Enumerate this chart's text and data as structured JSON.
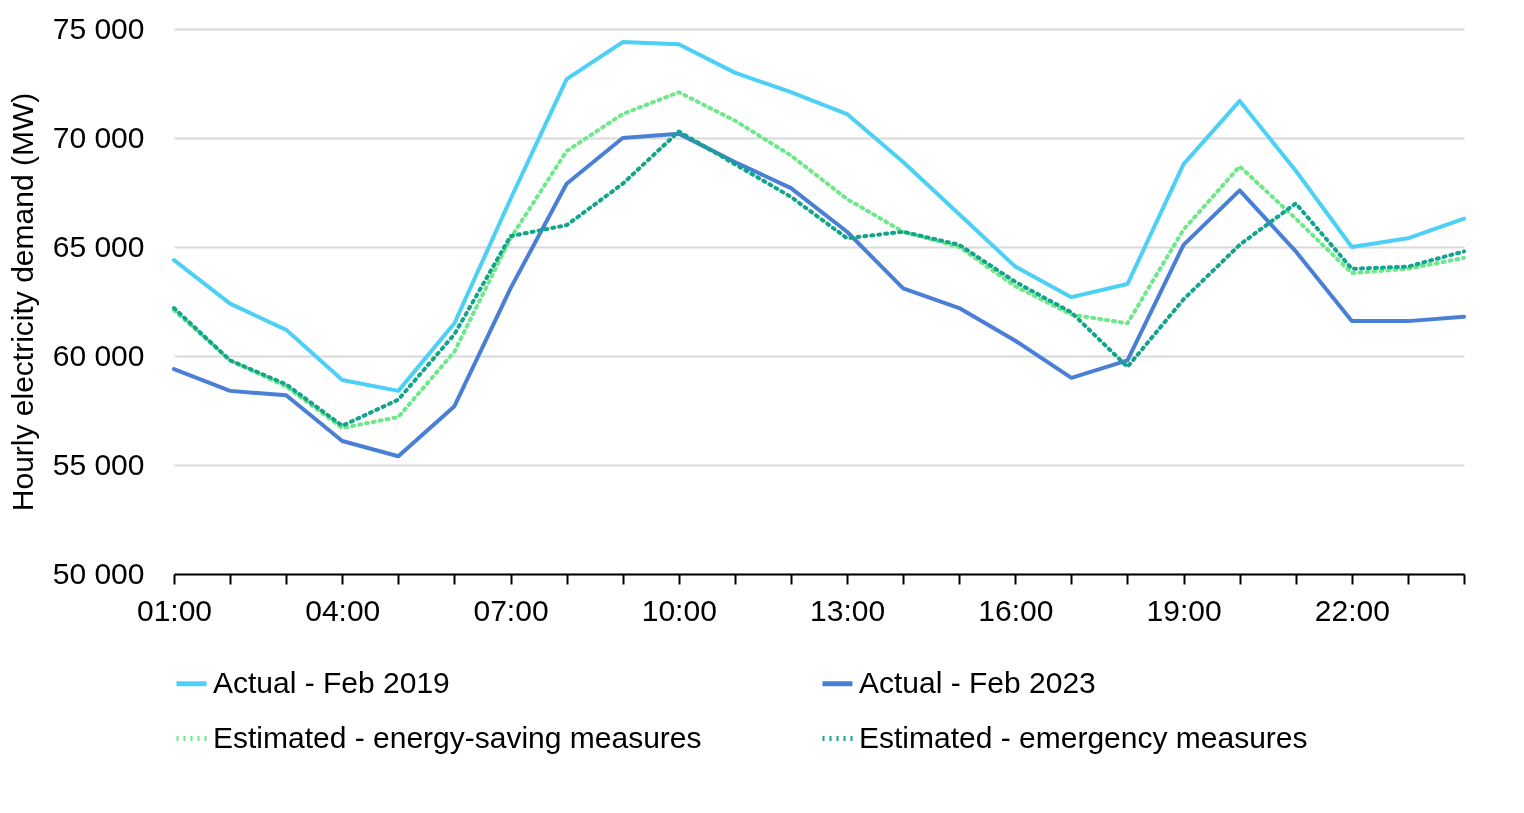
{
  "chart_data": {
    "type": "line",
    "ylabel": "Hourly electricity demand (MW)",
    "x": [
      1,
      2,
      3,
      4,
      5,
      6,
      7,
      8,
      9,
      10,
      11,
      12,
      13,
      14,
      15,
      16,
      17,
      18,
      19,
      20,
      21,
      22,
      23,
      24
    ],
    "xlim": [
      1,
      24
    ],
    "xticks": [
      {
        "value": 1,
        "label": "01:00"
      },
      {
        "value": 2,
        "label": null
      },
      {
        "value": 3,
        "label": null
      },
      {
        "value": 4,
        "label": "04:00"
      },
      {
        "value": 5,
        "label": null
      },
      {
        "value": 6,
        "label": null
      },
      {
        "value": 7,
        "label": "07:00"
      },
      {
        "value": 8,
        "label": null
      },
      {
        "value": 9,
        "label": null
      },
      {
        "value": 10,
        "label": "10:00"
      },
      {
        "value": 11,
        "label": null
      },
      {
        "value": 12,
        "label": null
      },
      {
        "value": 13,
        "label": "13:00"
      },
      {
        "value": 14,
        "label": null
      },
      {
        "value": 15,
        "label": null
      },
      {
        "value": 16,
        "label": "16:00"
      },
      {
        "value": 17,
        "label": null
      },
      {
        "value": 18,
        "label": null
      },
      {
        "value": 19,
        "label": "19:00"
      },
      {
        "value": 20,
        "label": null
      },
      {
        "value": 21,
        "label": null
      },
      {
        "value": 22,
        "label": "22:00"
      },
      {
        "value": 23,
        "label": null
      },
      {
        "value": 24,
        "label": null
      }
    ],
    "ylim": [
      50000,
      75000
    ],
    "yticks": [
      {
        "value": 50000,
        "label": "50 000"
      },
      {
        "value": 55000,
        "label": "55 000"
      },
      {
        "value": 60000,
        "label": "60 000"
      },
      {
        "value": 65000,
        "label": "65 000"
      },
      {
        "value": 70000,
        "label": "70 000"
      },
      {
        "value": 75000,
        "label": "75 000"
      }
    ],
    "grid": "y",
    "legend": "bottom",
    "marker": "none",
    "series": [
      {
        "name": "Actual - Feb 2019",
        "color": "#4dd0f5",
        "line_style": "solid",
        "values": [
          64400,
          62400,
          61200,
          58900,
          58400,
          61500,
          67200,
          72700,
          74400,
          74300,
          73000,
          72100,
          71100,
          68900,
          66500,
          64100,
          62700,
          63300,
          68800,
          71700,
          68500,
          65000,
          65400,
          66300
        ]
      },
      {
        "name": "Actual - Feb 2023",
        "color": "#4a7fd6",
        "line_style": "solid",
        "values": [
          59400,
          58400,
          58200,
          56100,
          55400,
          57700,
          63100,
          67900,
          70000,
          70200,
          68900,
          67700,
          65700,
          63100,
          62200,
          60700,
          59000,
          59800,
          65100,
          67600,
          64800,
          61600,
          61600,
          61800
        ]
      },
      {
        "name": "Estimated - energy-saving measures",
        "color": "#6ee88a",
        "line_style": "dotted",
        "values": [
          62100,
          59800,
          58600,
          56700,
          57200,
          60200,
          65400,
          69400,
          71100,
          72100,
          70800,
          69200,
          67200,
          65700,
          65000,
          63200,
          61900,
          61500,
          65800,
          68700,
          66300,
          63800,
          64000,
          64500
        ]
      },
      {
        "name": "Estimated - emergency measures",
        "color": "#12a58c",
        "line_style": "dotted",
        "values": [
          62200,
          59800,
          58700,
          56800,
          58000,
          61000,
          65500,
          66000,
          67900,
          70300,
          68800,
          67300,
          65400,
          65700,
          65100,
          63400,
          62000,
          59500,
          62600,
          65100,
          67000,
          64000,
          64100,
          64800
        ]
      }
    ]
  }
}
